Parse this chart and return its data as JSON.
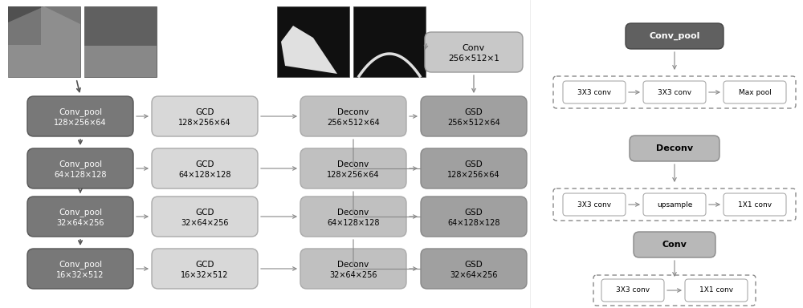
{
  "bg_color": "#ffffff",
  "cp_color": "#787878",
  "gcd_color": "#d8d8d8",
  "deconv_color": "#c0c0c0",
  "gsd_color": "#a0a0a0",
  "conv_color": "#c8c8c8",
  "legend_cp_color": "#606060",
  "legend_deconv_color": "#b8b8b8",
  "legend_conv_color": "#b8b8b8",
  "rows": [
    {
      "conv_pool": {
        "label": "Conv_pool",
        "sublabel": "128×256×64"
      },
      "gcd": {
        "label": "GCD",
        "sublabel": "128×256×64"
      },
      "deconv": {
        "label": "Deconv",
        "sublabel": "256×512×64"
      },
      "gsd": {
        "label": "GSD",
        "sublabel": "256×512×64"
      }
    },
    {
      "conv_pool": {
        "label": "Conv_pool",
        "sublabel": "64×128×128"
      },
      "gcd": {
        "label": "GCD",
        "sublabel": "64×128×128"
      },
      "deconv": {
        "label": "Deconv",
        "sublabel": "128×256×64"
      },
      "gsd": {
        "label": "GSD",
        "sublabel": "128×256×64"
      }
    },
    {
      "conv_pool": {
        "label": "Conv_pool",
        "sublabel": "32×64×256"
      },
      "gcd": {
        "label": "GCD",
        "sublabel": "32×64×256"
      },
      "deconv": {
        "label": "Deconv",
        "sublabel": "64×128×128"
      },
      "gsd": {
        "label": "GSD",
        "sublabel": "64×128×128"
      }
    },
    {
      "conv_pool": {
        "label": "Conv_pool",
        "sublabel": "16×32×512"
      },
      "gcd": {
        "label": "GCD",
        "sublabel": "16×32×512"
      },
      "deconv": {
        "label": "Deconv",
        "sublabel": "32×64×256"
      },
      "gsd": {
        "label": "GSD",
        "sublabel": "32×64×256"
      }
    }
  ],
  "conv_box": {
    "label": "Conv",
    "sublabel": "256×512×1"
  },
  "legend": {
    "conv_pool": {
      "title": "Conv_pool",
      "items": [
        "3X3 conv",
        "3X3 conv",
        "Max pool"
      ]
    },
    "deconv": {
      "title": "Deconv",
      "items": [
        "3X3 conv",
        "upsample",
        "1X1 conv"
      ]
    },
    "conv": {
      "title": "Conv",
      "items": [
        "3X3 conv",
        "1X1 conv"
      ]
    }
  }
}
